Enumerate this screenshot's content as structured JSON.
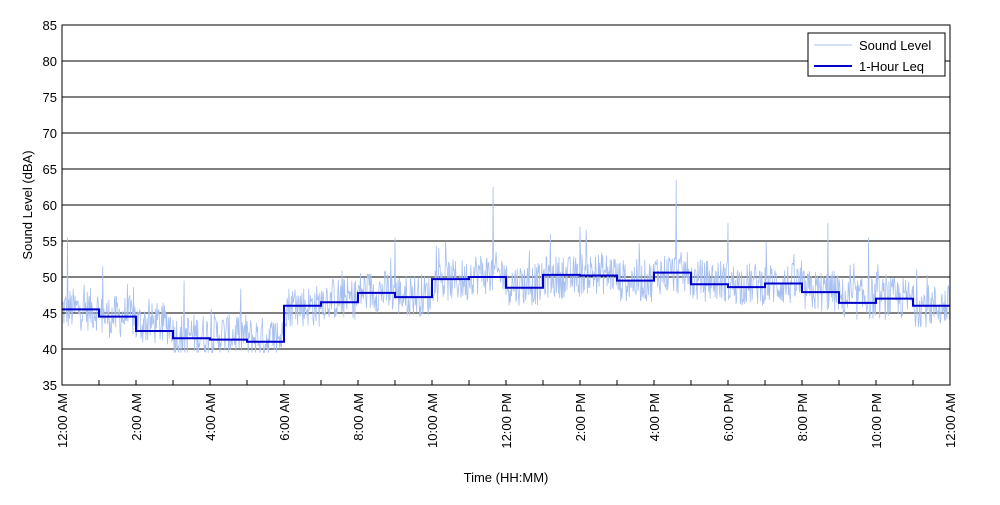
{
  "chart_data": {
    "type": "line",
    "xlabel": "Time (HH:MM)",
    "ylabel": "Sound Level (dBA)",
    "ylim": [
      35,
      85
    ],
    "y_ticks": [
      35,
      40,
      45,
      50,
      55,
      60,
      65,
      70,
      75,
      80,
      85
    ],
    "xlim_hours": [
      0,
      24
    ],
    "x_tick_labels": [
      {
        "hour": 0,
        "label": "12:00 AM"
      },
      {
        "hour": 2,
        "label": "2:00 AM"
      },
      {
        "hour": 4,
        "label": "4:00 AM"
      },
      {
        "hour": 6,
        "label": "6:00 AM"
      },
      {
        "hour": 8,
        "label": "8:00 AM"
      },
      {
        "hour": 10,
        "label": "10:00 AM"
      },
      {
        "hour": 12,
        "label": "12:00 PM"
      },
      {
        "hour": 14,
        "label": "2:00 PM"
      },
      {
        "hour": 16,
        "label": "4:00 PM"
      },
      {
        "hour": 18,
        "label": "6:00 PM"
      },
      {
        "hour": 20,
        "label": "8:00 PM"
      },
      {
        "hour": 22,
        "label": "10:00 PM"
      },
      {
        "hour": 24,
        "label": "12:00 AM"
      }
    ],
    "grid": "horizontal",
    "legend_position": "top-right",
    "series": [
      {
        "name": "Sound Level",
        "color": "#a8c0f0",
        "style": "thin-line",
        "hourly_base": [
          44.5,
          43.5,
          42.5,
          41,
          41,
          40.5,
          45,
          46,
          47,
          46.5,
          48.5,
          49.5,
          48,
          49,
          49.5,
          48.5,
          49.5,
          48.5,
          48,
          48,
          47,
          46,
          46,
          45
        ],
        "noise_amplitude": 3,
        "peaks": [
          {
            "hour": 0.15,
            "value": 55.5
          },
          {
            "hour": 1.1,
            "value": 51.5
          },
          {
            "hour": 3.3,
            "value": 49.5
          },
          {
            "hour": 11.65,
            "value": 62.5
          },
          {
            "hour": 14.0,
            "value": 57
          },
          {
            "hour": 16.6,
            "value": 63.5
          },
          {
            "hour": 18.0,
            "value": 57.5
          },
          {
            "hour": 20.7,
            "value": 57.5
          },
          {
            "hour": 21.8,
            "value": 55.5
          },
          {
            "hour": 9.0,
            "value": 55.5
          },
          {
            "hour": 13.2,
            "value": 56
          }
        ]
      },
      {
        "name": "1-Hour Leq",
        "color": "#0000cc",
        "style": "step",
        "values": [
          45.5,
          44.5,
          42.5,
          41.5,
          41.3,
          41,
          46,
          46.5,
          47.8,
          47.2,
          49.7,
          50,
          48.5,
          50.3,
          50.2,
          49.5,
          50.6,
          49,
          48.6,
          49.1,
          47.9,
          46.4,
          47,
          46
        ]
      }
    ]
  }
}
